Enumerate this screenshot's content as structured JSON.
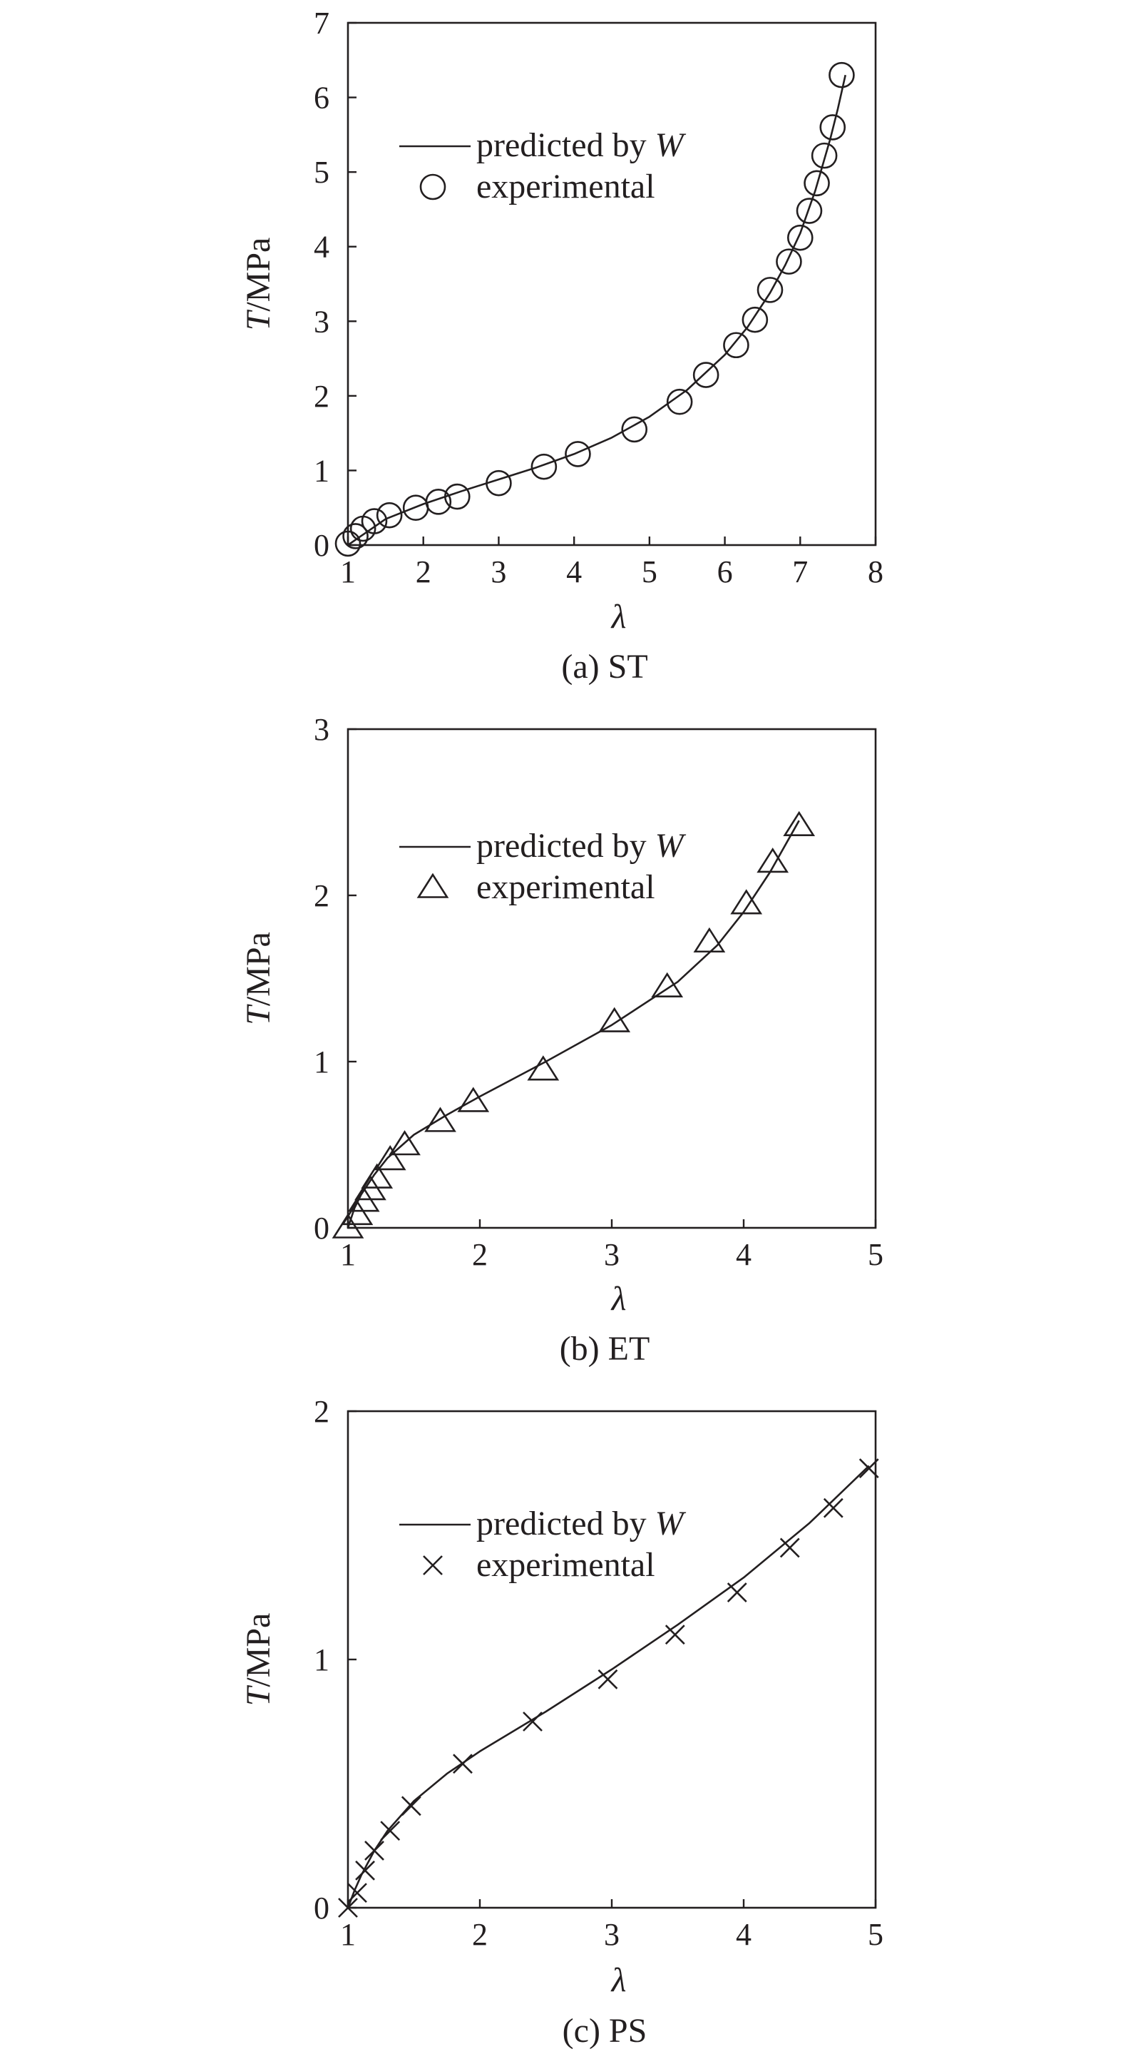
{
  "chart_data": [
    {
      "type": "line",
      "caption": "(a) ST",
      "xlabel": "λ",
      "ylabel_var": "T",
      "ylabel_unit": "/MPa",
      "xlim": [
        1,
        8
      ],
      "ylim": [
        0,
        7
      ],
      "xticks": [
        "1",
        "2",
        "3",
        "4",
        "5",
        "6",
        "7",
        "8"
      ],
      "yticks": [
        "0",
        "1",
        "2",
        "3",
        "4",
        "5",
        "6",
        "7"
      ],
      "legend_position": "upper-left",
      "marker": "circle",
      "series": [
        {
          "name": "predicted by W",
          "kind": "line",
          "x": [
            1.0,
            1.5,
            2.0,
            2.5,
            3.0,
            3.5,
            4.0,
            4.5,
            5.0,
            5.5,
            6.0,
            6.3,
            6.6,
            6.8,
            7.0,
            7.2,
            7.4,
            7.5,
            7.6
          ],
          "y": [
            0.0,
            0.35,
            0.55,
            0.72,
            0.88,
            1.04,
            1.22,
            1.44,
            1.72,
            2.08,
            2.55,
            2.92,
            3.38,
            3.75,
            4.18,
            4.75,
            5.45,
            5.85,
            6.3
          ]
        },
        {
          "name": "experimental",
          "kind": "marker",
          "x": [
            1.0,
            1.1,
            1.2,
            1.35,
            1.55,
            1.9,
            2.2,
            2.45,
            3.0,
            3.6,
            4.05,
            4.8,
            5.4,
            5.75,
            6.15,
            6.4,
            6.6,
            6.85,
            7.0,
            7.12,
            7.22,
            7.32,
            7.43,
            7.55
          ],
          "y": [
            0.02,
            0.12,
            0.22,
            0.32,
            0.4,
            0.5,
            0.58,
            0.65,
            0.83,
            1.05,
            1.22,
            1.55,
            1.92,
            2.28,
            2.68,
            3.02,
            3.42,
            3.8,
            4.12,
            4.48,
            4.85,
            5.22,
            5.6,
            6.3
          ]
        }
      ],
      "legend_line_label": "predicted by ",
      "legend_line_var": "W",
      "legend_marker_label": "experimental"
    },
    {
      "type": "line",
      "caption": "(b) ET",
      "xlabel": "λ",
      "ylabel_var": "T",
      "ylabel_unit": "/MPa",
      "xlim": [
        1,
        5
      ],
      "ylim": [
        0,
        3
      ],
      "xticks": [
        "1",
        "2",
        "3",
        "4",
        "5"
      ],
      "yticks": [
        "0",
        "1",
        "2",
        "3"
      ],
      "legend_position": "upper-left",
      "marker": "triangle",
      "series": [
        {
          "name": "predicted by W",
          "kind": "line",
          "x": [
            1.0,
            1.05,
            1.1,
            1.2,
            1.3,
            1.5,
            1.75,
            2.0,
            2.5,
            3.0,
            3.5,
            3.8,
            4.0,
            4.2,
            4.42
          ],
          "y": [
            0.0,
            0.12,
            0.2,
            0.32,
            0.42,
            0.56,
            0.68,
            0.79,
            1.0,
            1.22,
            1.48,
            1.7,
            1.9,
            2.14,
            2.45
          ]
        },
        {
          "name": "experimental",
          "kind": "marker",
          "x": [
            1.0,
            1.07,
            1.12,
            1.17,
            1.22,
            1.32,
            1.43,
            1.7,
            1.95,
            2.48,
            3.02,
            3.42,
            3.74,
            4.02,
            4.22,
            4.42
          ],
          "y": [
            0.0,
            0.08,
            0.16,
            0.23,
            0.3,
            0.41,
            0.5,
            0.64,
            0.76,
            0.95,
            1.24,
            1.45,
            1.72,
            1.95,
            2.2,
            2.42
          ]
        }
      ],
      "legend_line_label": "predicted by ",
      "legend_line_var": "W",
      "legend_marker_label": "experimental"
    },
    {
      "type": "line",
      "caption": "(c) PS",
      "xlabel": "λ",
      "ylabel_var": "T",
      "ylabel_unit": "/MPa",
      "xlim": [
        1,
        5
      ],
      "ylim": [
        0,
        2
      ],
      "xticks": [
        "1",
        "2",
        "3",
        "4",
        "5"
      ],
      "yticks": [
        "0",
        "1",
        "2"
      ],
      "legend_position": "upper-left",
      "marker": "cross",
      "series": [
        {
          "name": "predicted by W",
          "kind": "line",
          "x": [
            1.0,
            1.05,
            1.1,
            1.2,
            1.3,
            1.5,
            1.75,
            2.0,
            2.5,
            3.0,
            3.5,
            4.0,
            4.5,
            4.95
          ],
          "y": [
            0.0,
            0.07,
            0.13,
            0.23,
            0.31,
            0.43,
            0.54,
            0.63,
            0.79,
            0.96,
            1.14,
            1.33,
            1.55,
            1.78
          ]
        },
        {
          "name": "experimental",
          "kind": "marker",
          "x": [
            1.0,
            1.07,
            1.13,
            1.2,
            1.32,
            1.48,
            1.87,
            2.4,
            2.97,
            3.48,
            3.95,
            4.35,
            4.68,
            4.95
          ],
          "y": [
            0.0,
            0.06,
            0.15,
            0.23,
            0.31,
            0.41,
            0.58,
            0.75,
            0.92,
            1.1,
            1.27,
            1.45,
            1.61,
            1.77
          ]
        }
      ],
      "legend_line_label": "predicted by ",
      "legend_line_var": "W",
      "legend_marker_label": "experimental"
    }
  ]
}
